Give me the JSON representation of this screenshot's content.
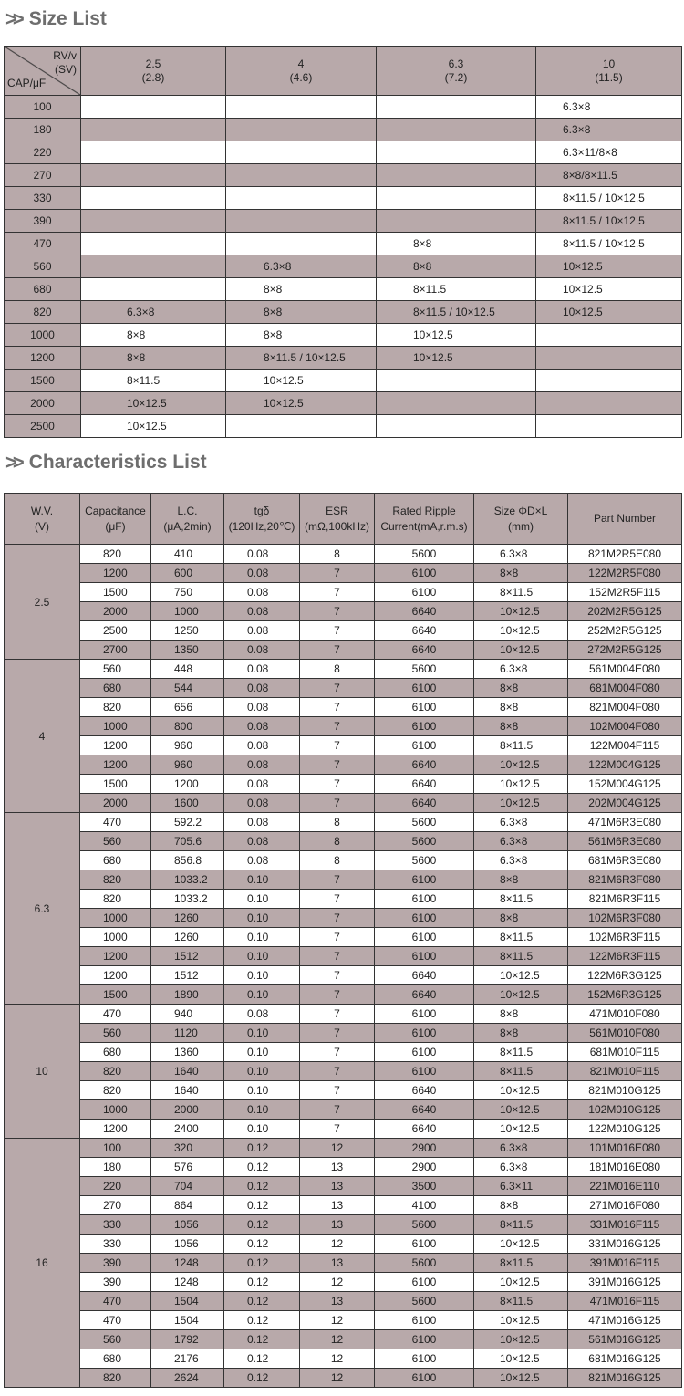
{
  "size_list": {
    "title": "Size List",
    "corner": {
      "rv": "RV/v",
      "sv": "(SV)",
      "cap": "CAP/μF"
    },
    "columns": [
      {
        "rv": "2.5",
        "sv": "(2.8)"
      },
      {
        "rv": "4",
        "sv": "(4.6)"
      },
      {
        "rv": "6.3",
        "sv": "(7.2)"
      },
      {
        "rv": "10",
        "sv": "(11.5)"
      }
    ],
    "rows": [
      {
        "cap": "100",
        "cells": [
          "",
          "",
          "",
          "6.3×8"
        ]
      },
      {
        "cap": "180",
        "cells": [
          "",
          "",
          "",
          "6.3×8"
        ]
      },
      {
        "cap": "220",
        "cells": [
          "",
          "",
          "",
          "6.3×11/8×8"
        ]
      },
      {
        "cap": "270",
        "cells": [
          "",
          "",
          "",
          "8×8/8×11.5"
        ]
      },
      {
        "cap": "330",
        "cells": [
          "",
          "",
          "",
          "8×11.5 / 10×12.5"
        ]
      },
      {
        "cap": "390",
        "cells": [
          "",
          "",
          "",
          "8×11.5 / 10×12.5"
        ]
      },
      {
        "cap": "470",
        "cells": [
          "",
          "",
          "8×8",
          "8×11.5 / 10×12.5"
        ]
      },
      {
        "cap": "560",
        "cells": [
          "",
          "6.3×8",
          "8×8",
          "10×12.5"
        ]
      },
      {
        "cap": "680",
        "cells": [
          "",
          "8×8",
          "8×11.5",
          "10×12.5"
        ]
      },
      {
        "cap": "820",
        "cells": [
          "6.3×8",
          "8×8",
          "8×11.5 / 10×12.5",
          "10×12.5"
        ]
      },
      {
        "cap": "1000",
        "cells": [
          "8×8",
          "8×8",
          "10×12.5",
          ""
        ]
      },
      {
        "cap": "1200",
        "cells": [
          "8×8",
          "8×11.5 / 10×12.5",
          "10×12.5",
          ""
        ]
      },
      {
        "cap": "1500",
        "cells": [
          "8×11.5",
          "10×12.5",
          "",
          ""
        ]
      },
      {
        "cap": "2000",
        "cells": [
          "10×12.5",
          "10×12.5",
          "",
          ""
        ]
      },
      {
        "cap": "2500",
        "cells": [
          "10×12.5",
          "",
          "",
          ""
        ]
      }
    ]
  },
  "characteristics_list": {
    "title": "Characteristics List",
    "headers": [
      [
        "W.V.",
        "(V)"
      ],
      [
        "Capacitance",
        "(μF)"
      ],
      [
        "L.C.",
        "(μA,2min)"
      ],
      [
        "tgδ",
        "(120Hz,20℃)"
      ],
      [
        "ESR",
        "(mΩ,100kHz)"
      ],
      [
        "Rated Ripple",
        "Current(mA,r.m.s)"
      ],
      [
        "Size ΦD×L",
        "(mm)"
      ],
      [
        "Part Number",
        ""
      ]
    ],
    "groups": [
      {
        "wv": "2.5",
        "rows": [
          [
            "820",
            "410",
            "0.08",
            "8",
            "5600",
            "6.3×8",
            "821M2R5E080"
          ],
          [
            "1200",
            "600",
            "0.08",
            "7",
            "6100",
            "8×8",
            "122M2R5F080"
          ],
          [
            "1500",
            "750",
            "0.08",
            "7",
            "6100",
            "8×11.5",
            "152M2R5F115"
          ],
          [
            "2000",
            "1000",
            "0.08",
            "7",
            "6640",
            "10×12.5",
            "202M2R5G125"
          ],
          [
            "2500",
            "1250",
            "0.08",
            "7",
            "6640",
            "10×12.5",
            "252M2R5G125"
          ],
          [
            "2700",
            "1350",
            "0.08",
            "7",
            "6640",
            "10×12.5",
            "272M2R5G125"
          ]
        ]
      },
      {
        "wv": "4",
        "rows": [
          [
            "560",
            "448",
            "0.08",
            "8",
            "5600",
            "6.3×8",
            "561M004E080"
          ],
          [
            "680",
            "544",
            "0.08",
            "7",
            "6100",
            "8×8",
            "681M004F080"
          ],
          [
            "820",
            "656",
            "0.08",
            "7",
            "6100",
            "8×8",
            "821M004F080"
          ],
          [
            "1000",
            "800",
            "0.08",
            "7",
            "6100",
            "8×8",
            "102M004F080"
          ],
          [
            "1200",
            "960",
            "0.08",
            "7",
            "6100",
            "8×11.5",
            "122M004F115"
          ],
          [
            "1200",
            "960",
            "0.08",
            "7",
            "6640",
            "10×12.5",
            "122M004G125"
          ],
          [
            "1500",
            "1200",
            "0.08",
            "7",
            "6640",
            "10×12.5",
            "152M004G125"
          ],
          [
            "2000",
            "1600",
            "0.08",
            "7",
            "6640",
            "10×12.5",
            "202M004G125"
          ]
        ]
      },
      {
        "wv": "6.3",
        "rows": [
          [
            "470",
            "592.2",
            "0.08",
            "8",
            "5600",
            "6.3×8",
            "471M6R3E080"
          ],
          [
            "560",
            "705.6",
            "0.08",
            "8",
            "5600",
            "6.3×8",
            "561M6R3E080"
          ],
          [
            "680",
            "856.8",
            "0.08",
            "8",
            "5600",
            "6.3×8",
            "681M6R3E080"
          ],
          [
            "820",
            "1033.2",
            "0.10",
            "7",
            "6100",
            "8×8",
            "821M6R3F080"
          ],
          [
            "820",
            "1033.2",
            "0.10",
            "7",
            "6100",
            "8×11.5",
            "821M6R3F115"
          ],
          [
            "1000",
            "1260",
            "0.10",
            "7",
            "6100",
            "8×8",
            "102M6R3F080"
          ],
          [
            "1000",
            "1260",
            "0.10",
            "7",
            "6100",
            "8×11.5",
            "102M6R3F115"
          ],
          [
            "1200",
            "1512",
            "0.10",
            "7",
            "6100",
            "8×11.5",
            "122M6R3F115"
          ],
          [
            "1200",
            "1512",
            "0.10",
            "7",
            "6640",
            "10×12.5",
            "122M6R3G125"
          ],
          [
            "1500",
            "1890",
            "0.10",
            "7",
            "6640",
            "10×12.5",
            "152M6R3G125"
          ]
        ]
      },
      {
        "wv": "10",
        "rows": [
          [
            "470",
            "940",
            "0.08",
            "7",
            "6100",
            "8×8",
            "471M010F080"
          ],
          [
            "560",
            "1120",
            "0.10",
            "7",
            "6100",
            "8×8",
            "561M010F080"
          ],
          [
            "680",
            "1360",
            "0.10",
            "7",
            "6100",
            "8×11.5",
            "681M010F115"
          ],
          [
            "820",
            "1640",
            "0.10",
            "7",
            "6100",
            "8×11.5",
            "821M010F115"
          ],
          [
            "820",
            "1640",
            "0.10",
            "7",
            "6640",
            "10×12.5",
            "821M010G125"
          ],
          [
            "1000",
            "2000",
            "0.10",
            "7",
            "6640",
            "10×12.5",
            "102M010G125"
          ],
          [
            "1200",
            "2400",
            "0.10",
            "7",
            "6640",
            "10×12.5",
            "122M010G125"
          ]
        ]
      },
      {
        "wv": "16",
        "rows": [
          [
            "100",
            "320",
            "0.12",
            "12",
            "2900",
            "6.3×8",
            "101M016E080"
          ],
          [
            "180",
            "576",
            "0.12",
            "13",
            "2900",
            "6.3×8",
            "181M016E080"
          ],
          [
            "220",
            "704",
            "0.12",
            "13",
            "3500",
            "6.3×11",
            "221M016E110"
          ],
          [
            "270",
            "864",
            "0.12",
            "13",
            "4100",
            "8×8",
            "271M016F080"
          ],
          [
            "330",
            "1056",
            "0.12",
            "13",
            "5600",
            "8×11.5",
            "331M016F115"
          ],
          [
            "330",
            "1056",
            "0.12",
            "12",
            "6100",
            "10×12.5",
            "331M016G125"
          ],
          [
            "390",
            "1248",
            "0.12",
            "13",
            "5600",
            "8×11.5",
            "391M016F115"
          ],
          [
            "390",
            "1248",
            "0.12",
            "12",
            "6100",
            "10×12.5",
            "391M016G125"
          ],
          [
            "470",
            "1504",
            "0.12",
            "13",
            "5600",
            "8×11.5",
            "471M016F115"
          ],
          [
            "470",
            "1504",
            "0.12",
            "12",
            "6100",
            "10×12.5",
            "471M016G125"
          ],
          [
            "560",
            "1792",
            "0.12",
            "12",
            "6100",
            "10×12.5",
            "561M016G125"
          ],
          [
            "680",
            "2176",
            "0.12",
            "12",
            "6100",
            "10×12.5",
            "681M016G125"
          ],
          [
            "820",
            "2624",
            "0.12",
            "12",
            "6100",
            "10×12.5",
            "821M016G125"
          ]
        ]
      }
    ]
  },
  "colors": {
    "header_fill": "#b8a9aa",
    "title_text": "#6e6e6e"
  }
}
